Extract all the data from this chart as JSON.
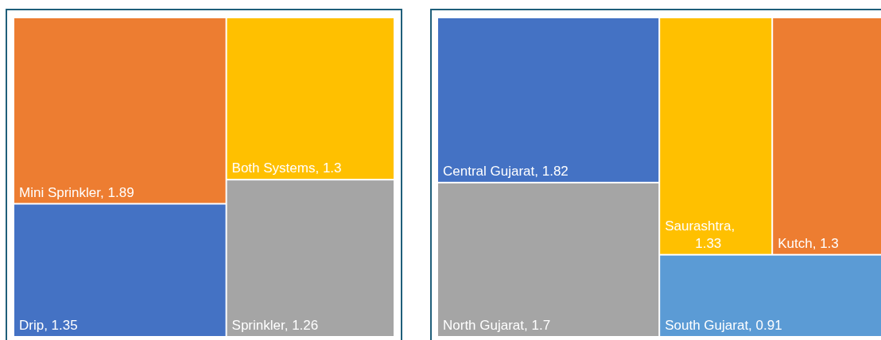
{
  "chart_data": [
    {
      "type": "other",
      "categories": [
        "Mini Sprinkler",
        "Drip",
        "Both Systems",
        "Sprinkler"
      ],
      "values": [
        1.89,
        1.35,
        1.3,
        1.26
      ],
      "colors": [
        "#ed7d31",
        "#4472c4",
        "#ffc000",
        "#a5a5a5"
      ],
      "value_labels": [
        ", 1.89",
        ", 1.35",
        ", 1.3",
        ", 1.26"
      ]
    },
    {
      "type": "other",
      "categories": [
        "Central Gujarat",
        "North Gujarat",
        "Saurashtra",
        "Kutch",
        "South Gujarat"
      ],
      "values": [
        1.82,
        1.7,
        1.33,
        1.3,
        0.91
      ],
      "colors": [
        "#4472c4",
        "#a5a5a5",
        "#ffc000",
        "#ed7d31",
        "#5b9bd5"
      ],
      "value_labels": [
        ", 1.82",
        ", 1.7",
        ", 1.33",
        ", 1.3",
        ", 0.91"
      ]
    }
  ]
}
